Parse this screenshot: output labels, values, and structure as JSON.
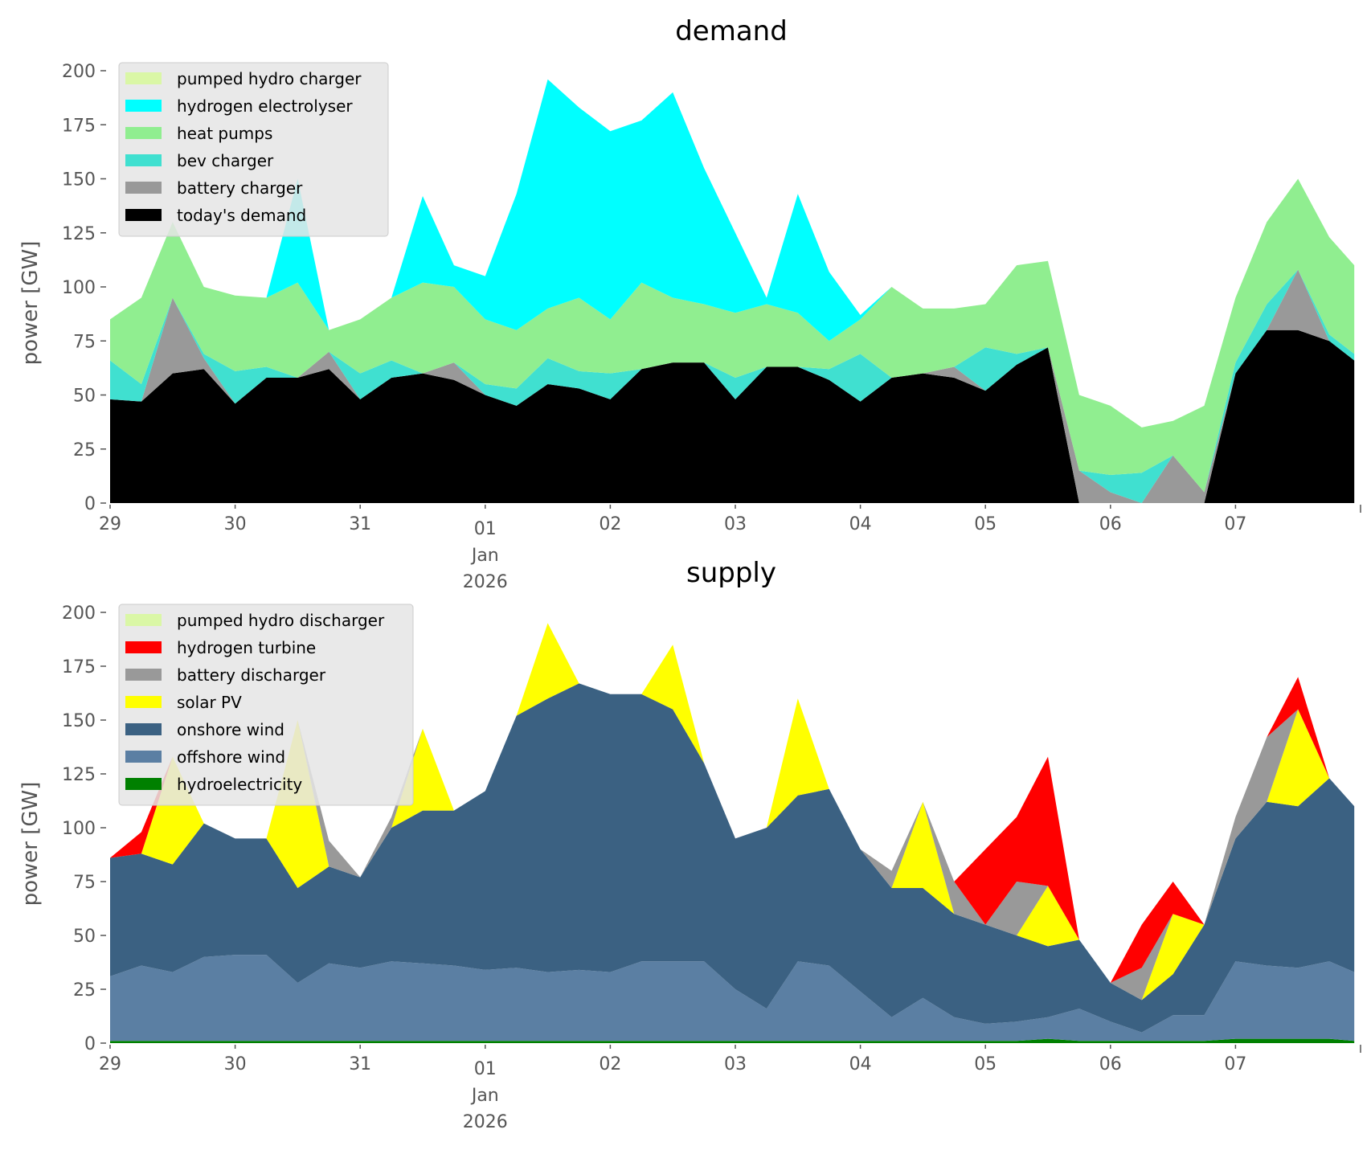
{
  "chart_data": [
    {
      "type": "area",
      "stacked": true,
      "title": "demand",
      "xlabel": "",
      "ylabel": "power [GW]",
      "ylim": [
        0,
        210
      ],
      "yticks": [
        0,
        25,
        50,
        75,
        100,
        125,
        150,
        175,
        200
      ],
      "xlim_days": [
        0,
        10
      ],
      "x_unit": "days since 2025-12-29 00:00",
      "xticks": [
        {
          "day": 0,
          "label": "29"
        },
        {
          "day": 1,
          "label": "30"
        },
        {
          "day": 2,
          "label": "31"
        },
        {
          "day": 3,
          "label": "01",
          "sub": [
            "Jan",
            "2026"
          ]
        },
        {
          "day": 4,
          "label": "02"
        },
        {
          "day": 5,
          "label": "03"
        },
        {
          "day": 6,
          "label": "04"
        },
        {
          "day": 7,
          "label": "05"
        },
        {
          "day": 8,
          "label": "06"
        },
        {
          "day": 9,
          "label": "07"
        },
        {
          "day": 10,
          "label": ""
        }
      ],
      "legend_position": "top-left",
      "x": [
        0,
        0.25,
        0.5,
        0.75,
        1,
        1.25,
        1.5,
        1.75,
        2,
        2.25,
        2.5,
        2.75,
        3,
        3.25,
        3.5,
        3.75,
        4,
        4.25,
        4.5,
        4.75,
        5,
        5.25,
        5.5,
        5.75,
        6,
        6.25,
        6.5,
        6.75,
        7,
        7.25,
        7.5,
        7.75,
        8,
        8.25,
        8.5,
        8.75,
        9,
        9.25,
        9.5,
        9.75,
        9.95
      ],
      "series": [
        {
          "name": "today's demand",
          "color": "#000000",
          "values": [
            48,
            47,
            60,
            62,
            46,
            58,
            58,
            62,
            48,
            58,
            60,
            57,
            50,
            45,
            55,
            53,
            48,
            62,
            65,
            65,
            48,
            63,
            63,
            57,
            47,
            58,
            60,
            58,
            52,
            64,
            72,
            0,
            0,
            0,
            0,
            0,
            60,
            80,
            80,
            75,
            66
          ]
        },
        {
          "name": "battery charger",
          "color": "#999999",
          "values": [
            0,
            0,
            35,
            5,
            0,
            0,
            0,
            8,
            0,
            0,
            0,
            8,
            0,
            0,
            0,
            0,
            0,
            0,
            0,
            0,
            0,
            0,
            0,
            0,
            0,
            0,
            0,
            5,
            0,
            0,
            0,
            15,
            5,
            0,
            22,
            5,
            0,
            0,
            28,
            0,
            0
          ]
        },
        {
          "name": "bev charger",
          "color": "#40E0D0",
          "values": [
            18,
            8,
            0,
            2,
            15,
            5,
            0,
            0,
            12,
            8,
            0,
            0,
            5,
            8,
            12,
            8,
            12,
            0,
            0,
            0,
            10,
            0,
            0,
            5,
            22,
            0,
            0,
            0,
            20,
            5,
            0,
            0,
            8,
            14,
            0,
            0,
            5,
            12,
            0,
            3,
            3
          ]
        },
        {
          "name": "heat pumps",
          "color": "#90EE90",
          "values": [
            19,
            40,
            35,
            31,
            35,
            32,
            44,
            10,
            25,
            29,
            42,
            35,
            30,
            27,
            23,
            34,
            25,
            40,
            30,
            27,
            30,
            29,
            25,
            13,
            16,
            42,
            30,
            27,
            20,
            41,
            40,
            35,
            32,
            21,
            16,
            40,
            30,
            38,
            42,
            45,
            41
          ]
        },
        {
          "name": "hydrogen electrolyser",
          "color": "#00FFFF",
          "values": [
            0,
            0,
            0,
            0,
            0,
            0,
            48,
            0,
            0,
            0,
            40,
            10,
            20,
            63,
            106,
            88,
            87,
            75,
            95,
            63,
            37,
            3,
            55,
            32,
            2,
            0,
            0,
            0,
            0,
            0,
            0,
            0,
            0,
            0,
            0,
            0,
            0,
            0,
            0,
            0,
            0
          ]
        },
        {
          "name": "pumped hydro charger",
          "color": "#DAF7A6",
          "values": [
            0,
            0,
            0,
            0,
            0,
            0,
            0,
            0,
            0,
            0,
            0,
            0,
            0,
            0,
            0,
            0,
            0,
            0,
            0,
            0,
            0,
            0,
            0,
            0,
            0,
            0,
            0,
            0,
            0,
            0,
            0,
            0,
            0,
            0,
            0,
            0,
            0,
            0,
            0,
            0,
            0
          ]
        }
      ],
      "legend": [
        {
          "label": "pumped hydro charger",
          "color": "#DAF7A6"
        },
        {
          "label": "hydrogen electrolyser",
          "color": "#00FFFF"
        },
        {
          "label": "heat pumps",
          "color": "#90EE90"
        },
        {
          "label": "bev charger",
          "color": "#40E0D0"
        },
        {
          "label": "battery charger",
          "color": "#999999"
        },
        {
          "label": "today's demand",
          "color": "#000000"
        }
      ]
    },
    {
      "type": "area",
      "stacked": true,
      "title": "supply",
      "xlabel": "",
      "ylabel": "power [GW]",
      "ylim": [
        0,
        210
      ],
      "yticks": [
        0,
        25,
        50,
        75,
        100,
        125,
        150,
        175,
        200
      ],
      "xlim_days": [
        0,
        10
      ],
      "x_unit": "days since 2025-12-29 00:00",
      "xticks": [
        {
          "day": 0,
          "label": "29"
        },
        {
          "day": 1,
          "label": "30"
        },
        {
          "day": 2,
          "label": "31"
        },
        {
          "day": 3,
          "label": "01",
          "sub": [
            "Jan",
            "2026"
          ]
        },
        {
          "day": 4,
          "label": "02"
        },
        {
          "day": 5,
          "label": "03"
        },
        {
          "day": 6,
          "label": "04"
        },
        {
          "day": 7,
          "label": "05"
        },
        {
          "day": 8,
          "label": "06"
        },
        {
          "day": 9,
          "label": "07"
        },
        {
          "day": 10,
          "label": ""
        }
      ],
      "legend_position": "top-left",
      "x": [
        0,
        0.25,
        0.5,
        0.75,
        1,
        1.25,
        1.5,
        1.75,
        2,
        2.25,
        2.5,
        2.75,
        3,
        3.25,
        3.5,
        3.75,
        4,
        4.25,
        4.5,
        4.75,
        5,
        5.25,
        5.5,
        5.75,
        6,
        6.25,
        6.5,
        6.75,
        7,
        7.25,
        7.5,
        7.75,
        8,
        8.25,
        8.5,
        8.75,
        9,
        9.25,
        9.5,
        9.75,
        9.95
      ],
      "series": [
        {
          "name": "hydroelectricity",
          "color": "#008000",
          "values": [
            1,
            1,
            1,
            1,
            1,
            1,
            1,
            1,
            1,
            1,
            1,
            1,
            1,
            1,
            1,
            1,
            1,
            1,
            1,
            1,
            1,
            1,
            1,
            1,
            1,
            1,
            1,
            1,
            1,
            1,
            2,
            1,
            1,
            1,
            1,
            1,
            2,
            2,
            2,
            2,
            1
          ]
        },
        {
          "name": "offshore wind",
          "color": "#5B7FA3",
          "values": [
            30,
            35,
            32,
            39,
            40,
            40,
            27,
            36,
            34,
            37,
            36,
            35,
            33,
            34,
            32,
            33,
            32,
            37,
            37,
            37,
            24,
            15,
            37,
            35,
            23,
            11,
            20,
            11,
            8,
            9,
            10,
            15,
            9,
            4,
            12,
            12,
            36,
            34,
            33,
            36,
            32
          ]
        },
        {
          "name": "onshore wind",
          "color": "#3B6182",
          "values": [
            55,
            52,
            50,
            62,
            54,
            54,
            44,
            45,
            42,
            62,
            71,
            72,
            83,
            117,
            127,
            133,
            129,
            124,
            117,
            92,
            70,
            84,
            77,
            82,
            66,
            60,
            51,
            48,
            46,
            40,
            33,
            32,
            18,
            15,
            19,
            42,
            57,
            76,
            75,
            85,
            77
          ]
        },
        {
          "name": "solar PV",
          "color": "#FFFF00",
          "values": [
            0,
            0,
            50,
            0,
            0,
            0,
            78,
            0,
            0,
            0,
            38,
            0,
            0,
            0,
            35,
            0,
            0,
            0,
            30,
            0,
            0,
            0,
            45,
            0,
            0,
            0,
            40,
            0,
            0,
            0,
            28,
            0,
            0,
            0,
            28,
            0,
            0,
            0,
            45,
            0,
            0
          ]
        },
        {
          "name": "battery discharger",
          "color": "#999999",
          "values": [
            0,
            0,
            0,
            0,
            0,
            0,
            0,
            12,
            0,
            5,
            0,
            0,
            0,
            0,
            0,
            0,
            0,
            0,
            0,
            0,
            0,
            0,
            0,
            0,
            0,
            8,
            0,
            15,
            0,
            25,
            0,
            0,
            0,
            15,
            0,
            0,
            10,
            30,
            0,
            0,
            0
          ]
        },
        {
          "name": "hydrogen turbine",
          "color": "#FF0000",
          "values": [
            0,
            10,
            0,
            0,
            0,
            0,
            0,
            0,
            0,
            0,
            0,
            0,
            0,
            0,
            0,
            0,
            0,
            0,
            0,
            0,
            0,
            0,
            0,
            0,
            0,
            0,
            0,
            0,
            35,
            30,
            60,
            0,
            0,
            20,
            15,
            0,
            0,
            0,
            15,
            0,
            0
          ]
        },
        {
          "name": "pumped hydro discharger",
          "color": "#DAF7A6",
          "values": [
            0,
            0,
            0,
            0,
            0,
            0,
            0,
            0,
            0,
            0,
            0,
            0,
            0,
            0,
            0,
            0,
            0,
            0,
            0,
            0,
            0,
            0,
            0,
            0,
            0,
            0,
            0,
            0,
            0,
            0,
            0,
            0,
            0,
            0,
            0,
            0,
            0,
            0,
            0,
            0,
            0
          ]
        }
      ],
      "legend": [
        {
          "label": "pumped hydro discharger",
          "color": "#DAF7A6"
        },
        {
          "label": "hydrogen turbine",
          "color": "#FF0000"
        },
        {
          "label": "battery discharger",
          "color": "#999999"
        },
        {
          "label": "solar PV",
          "color": "#FFFF00"
        },
        {
          "label": "onshore wind",
          "color": "#3B6182"
        },
        {
          "label": "offshore wind",
          "color": "#5B7FA3"
        },
        {
          "label": "hydroelectricity",
          "color": "#008000"
        }
      ]
    }
  ]
}
